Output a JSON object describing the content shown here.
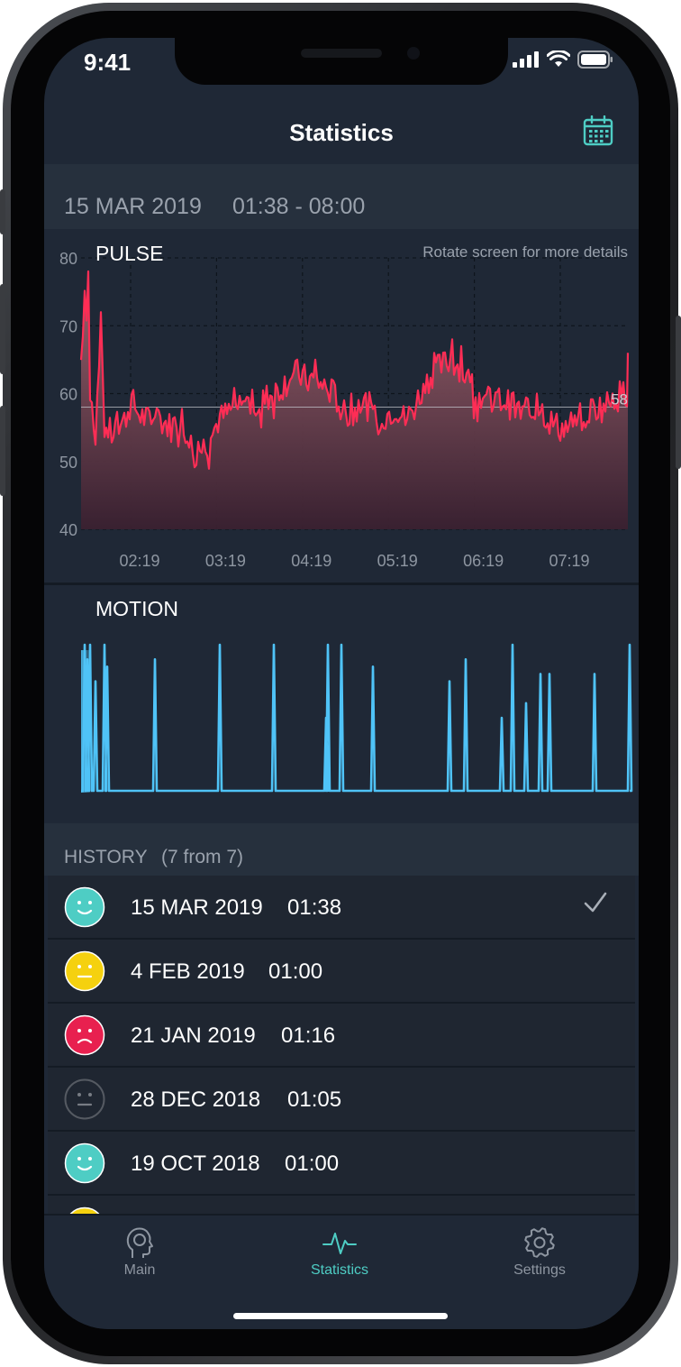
{
  "status": {
    "time": "9:41"
  },
  "header": {
    "title": "Statistics"
  },
  "session": {
    "date": "15 MAR 2019",
    "time_range": "01:38 - 08:00"
  },
  "pulse": {
    "label": "PULSE",
    "hint": "Rotate screen for more details",
    "current_value": "58",
    "y_ticks": [
      "80",
      "70",
      "60",
      "50",
      "40"
    ],
    "x_ticks": [
      "02:19",
      "03:19",
      "04:19",
      "05:19",
      "06:19",
      "07:19"
    ],
    "colors": {
      "line": "#ff2d55",
      "fill_top": "#a06670",
      "fill_bottom": "#3a2030"
    }
  },
  "motion": {
    "label": "MOTION",
    "color": "#4fc3f7"
  },
  "history": {
    "label": "HISTORY",
    "count": "(7 from 7)",
    "items": [
      {
        "date": "15 MAR 2019",
        "time": "01:38",
        "mood": "happy",
        "color": "#4ecdc4",
        "selected": true
      },
      {
        "date": "4 FEB 2019",
        "time": "01:00",
        "mood": "neutral",
        "color": "#f5d10f",
        "selected": false
      },
      {
        "date": "21 JAN 2019",
        "time": "01:16",
        "mood": "sad",
        "color": "#e8204f",
        "selected": false
      },
      {
        "date": "28 DEC 2018",
        "time": "01:05",
        "mood": "neutral",
        "color": "#555a62",
        "selected": false
      },
      {
        "date": "19 OCT 2018",
        "time": "01:00",
        "mood": "happy",
        "color": "#4ecdc4",
        "selected": false
      }
    ]
  },
  "tabs": [
    {
      "label": "Main",
      "icon": "head-icon",
      "active": false
    },
    {
      "label": "Statistics",
      "icon": "pulse-wave-icon",
      "active": true
    },
    {
      "label": "Settings",
      "icon": "gear-icon",
      "active": false
    }
  ],
  "accent": "#4ecdc4"
}
